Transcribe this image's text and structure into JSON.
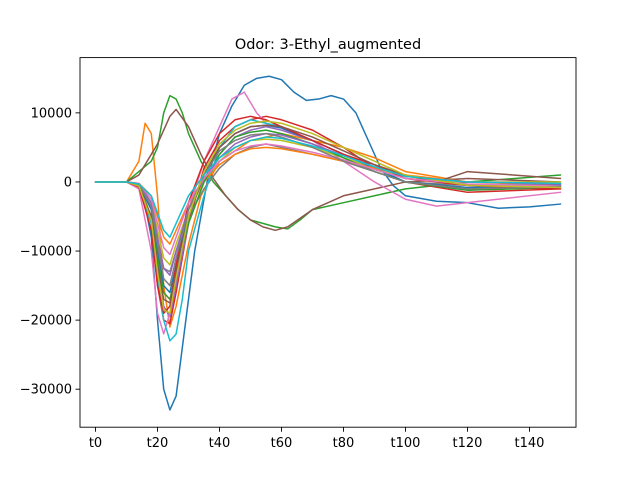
{
  "chart_data": {
    "type": "line",
    "title": "Odor: 3-Ethyl_augmented",
    "xlabel": "",
    "ylabel": "",
    "xlim": [
      -5,
      155
    ],
    "ylim": [
      -35500,
      18000
    ],
    "grid": false,
    "legend": "none",
    "x_ticks": [
      {
        "value": 0,
        "label": "t0"
      },
      {
        "value": 20,
        "label": "t20"
      },
      {
        "value": 40,
        "label": "t40"
      },
      {
        "value": 60,
        "label": "t60"
      },
      {
        "value": 80,
        "label": "t80"
      },
      {
        "value": 100,
        "label": "t100"
      },
      {
        "value": 120,
        "label": "t120"
      },
      {
        "value": 140,
        "label": "t140"
      }
    ],
    "y_ticks": [
      {
        "value": 10000,
        "label": "10000"
      },
      {
        "value": 0,
        "label": "0"
      },
      {
        "value": -10000,
        "label": "−10000"
      },
      {
        "value": -20000,
        "label": "−20000"
      },
      {
        "value": -30000,
        "label": "−30000"
      }
    ],
    "series": [
      {
        "color": "#1f77b4",
        "x": [
          0,
          10,
          15,
          18,
          20,
          22,
          24,
          26,
          28,
          32,
          36,
          40,
          44,
          48,
          52,
          56,
          60,
          64,
          68,
          72,
          76,
          80,
          84,
          88,
          92,
          96,
          100,
          110,
          120,
          130,
          140,
          150
        ],
        "y": [
          0,
          0,
          -1000,
          -8000,
          -20000,
          -30000,
          -33000,
          -31000,
          -24000,
          -10000,
          0,
          7000,
          11000,
          14000,
          15000,
          15300,
          14800,
          13000,
          11800,
          12000,
          12500,
          12000,
          10000,
          6000,
          2000,
          -500,
          -2000,
          -2800,
          -3000,
          -3800,
          -3600,
          -3200
        ]
      },
      {
        "color": "#ff7f0e",
        "x": [
          0,
          10,
          14,
          16,
          18,
          20,
          22,
          24,
          26,
          30,
          34,
          40,
          50,
          60,
          70,
          80,
          90,
          100,
          120,
          150
        ],
        "y": [
          0,
          0,
          3000,
          8500,
          7000,
          -2000,
          -15000,
          -21000,
          -18000,
          -9000,
          -2000,
          3000,
          6000,
          7000,
          6000,
          5000,
          3500,
          1500,
          0,
          -500
        ]
      },
      {
        "color": "#2ca02c",
        "x": [
          0,
          10,
          14,
          18,
          20,
          22,
          24,
          26,
          28,
          30,
          34,
          38,
          42,
          46,
          50,
          54,
          58,
          62,
          66,
          70,
          80,
          90,
          100,
          120,
          150
        ],
        "y": [
          0,
          0,
          1500,
          3000,
          5000,
          10000,
          12500,
          12000,
          10000,
          7000,
          3000,
          0,
          -2000,
          -4000,
          -5500,
          -6000,
          -6500,
          -6800,
          -5500,
          -4000,
          -3000,
          -2000,
          -1000,
          0,
          1000
        ]
      },
      {
        "color": "#d62728",
        "x": [
          0,
          10,
          14,
          18,
          20,
          22,
          24,
          26,
          30,
          35,
          40,
          45,
          50,
          55,
          60,
          70,
          80,
          90,
          100,
          120,
          150
        ],
        "y": [
          0,
          0,
          -500,
          -6000,
          -15000,
          -20000,
          -20500,
          -16000,
          -6000,
          2000,
          6000,
          8000,
          9000,
          9500,
          9000,
          7500,
          5000,
          2000,
          0,
          -1500,
          -1000
        ]
      },
      {
        "color": "#9467bd",
        "x": [
          0,
          10,
          14,
          18,
          20,
          22,
          24,
          26,
          30,
          35,
          40,
          45,
          50,
          55,
          60,
          70,
          80,
          90,
          100,
          120,
          150
        ],
        "y": [
          0,
          0,
          -800,
          -5000,
          -12000,
          -18000,
          -19500,
          -15000,
          -6000,
          0,
          4000,
          6500,
          7500,
          8000,
          7500,
          6000,
          4000,
          2000,
          0,
          -1000,
          -500
        ]
      },
      {
        "color": "#8c564b",
        "x": [
          0,
          10,
          14,
          18,
          20,
          22,
          24,
          26,
          30,
          34,
          38,
          42,
          46,
          50,
          54,
          58,
          62,
          70,
          80,
          90,
          100,
          120,
          150
        ],
        "y": [
          0,
          0,
          1000,
          4000,
          5500,
          7500,
          9500,
          10500,
          8000,
          4000,
          500,
          -2000,
          -4000,
          -5500,
          -6500,
          -7000,
          -6500,
          -4000,
          -2000,
          -1000,
          0,
          500,
          0
        ]
      },
      {
        "color": "#e377c2",
        "x": [
          0,
          10,
          14,
          18,
          20,
          22,
          24,
          26,
          30,
          35,
          40,
          44,
          48,
          52,
          55,
          58,
          60,
          65,
          70,
          80,
          90,
          100,
          110,
          120,
          150
        ],
        "y": [
          0,
          0,
          -1000,
          -10000,
          -19000,
          -22000,
          -19000,
          -13000,
          -4000,
          3000,
          8000,
          12000,
          13000,
          10000,
          8500,
          8000,
          8000,
          7000,
          6000,
          3000,
          0,
          -2500,
          -3500,
          -3000,
          -1500
        ]
      },
      {
        "color": "#7f7f7f",
        "x": [
          0,
          10,
          14,
          18,
          20,
          22,
          24,
          26,
          30,
          35,
          40,
          45,
          50,
          55,
          60,
          70,
          80,
          90,
          100,
          120,
          150
        ],
        "y": [
          0,
          0,
          -500,
          -4000,
          -9000,
          -12500,
          -13000,
          -10000,
          -5000,
          -1000,
          2000,
          4000,
          5000,
          5500,
          5000,
          4000,
          3000,
          1500,
          0,
          -500,
          -300
        ]
      },
      {
        "color": "#bcbd22",
        "x": [
          0,
          10,
          14,
          18,
          20,
          22,
          24,
          26,
          30,
          35,
          40,
          45,
          50,
          55,
          60,
          70,
          80,
          90,
          100,
          120,
          150
        ],
        "y": [
          0,
          0,
          -300,
          -3000,
          -7000,
          -11000,
          -12000,
          -9000,
          -4000,
          0,
          3000,
          5000,
          6000,
          6200,
          6000,
          5000,
          3500,
          2000,
          500,
          0,
          0
        ]
      },
      {
        "color": "#17becf",
        "x": [
          0,
          10,
          14,
          18,
          20,
          22,
          24,
          26,
          28,
          30,
          35,
          40,
          45,
          50,
          55,
          60,
          70,
          80,
          90,
          100,
          120,
          150
        ],
        "y": [
          0,
          0,
          -500,
          -6000,
          -14000,
          -20000,
          -23000,
          -22000,
          -17000,
          -10000,
          -2000,
          5000,
          8000,
          9000,
          8500,
          8000,
          6000,
          4000,
          2000,
          0,
          -1000,
          -800
        ]
      },
      {
        "color": "#1f77b4",
        "x": [
          0,
          10,
          14,
          18,
          20,
          22,
          24,
          26,
          30,
          35,
          40,
          45,
          50,
          55,
          60,
          70,
          80,
          90,
          100,
          120,
          150
        ],
        "y": [
          0,
          0,
          -400,
          -4000,
          -10000,
          -15000,
          -16000,
          -12000,
          -5000,
          1000,
          5000,
          7000,
          8000,
          8200,
          7800,
          6000,
          4000,
          2000,
          0,
          -800,
          -500
        ]
      },
      {
        "color": "#ff7f0e",
        "x": [
          0,
          10,
          14,
          18,
          20,
          22,
          24,
          26,
          30,
          35,
          40,
          45,
          50,
          55,
          60,
          70,
          80,
          90,
          100,
          120,
          150
        ],
        "y": [
          0,
          0,
          -200,
          -2000,
          -5000,
          -8000,
          -9000,
          -7000,
          -3000,
          0,
          2500,
          4000,
          4800,
          5000,
          4800,
          4000,
          3000,
          2000,
          1000,
          0,
          -200
        ]
      },
      {
        "color": "#2ca02c",
        "x": [
          0,
          10,
          14,
          18,
          20,
          22,
          24,
          26,
          30,
          35,
          40,
          45,
          50,
          55,
          60,
          70,
          80,
          90,
          100,
          120,
          150
        ],
        "y": [
          0,
          0,
          -600,
          -5000,
          -11000,
          -16000,
          -17000,
          -13000,
          -6000,
          0,
          4000,
          6500,
          7200,
          7500,
          7000,
          5500,
          3500,
          1500,
          0,
          -1200,
          -800
        ]
      },
      {
        "color": "#d62728",
        "x": [
          0,
          10,
          14,
          18,
          20,
          22,
          24,
          26,
          30,
          35,
          40,
          45,
          50,
          55,
          60,
          70,
          80,
          90,
          100,
          120,
          150
        ],
        "y": [
          0,
          0,
          -700,
          -7000,
          -15000,
          -19000,
          -18000,
          -12000,
          -3000,
          3000,
          7000,
          9000,
          9500,
          9000,
          8000,
          6000,
          4000,
          2500,
          500,
          -500,
          -1000
        ]
      },
      {
        "color": "#9467bd",
        "x": [
          0,
          10,
          14,
          18,
          20,
          22,
          24,
          26,
          30,
          35,
          40,
          45,
          50,
          55,
          60,
          70,
          80,
          90,
          100,
          120,
          150
        ],
        "y": [
          0,
          0,
          -300,
          -3000,
          -8000,
          -12500,
          -13500,
          -10000,
          -4000,
          500,
          3500,
          5500,
          6500,
          7000,
          6800,
          5500,
          3800,
          2200,
          800,
          0,
          -300
        ]
      },
      {
        "color": "#8c564b",
        "x": [
          0,
          10,
          14,
          18,
          20,
          22,
          24,
          26,
          30,
          35,
          40,
          45,
          50,
          55,
          60,
          70,
          80,
          90,
          100,
          110,
          120,
          150
        ],
        "y": [
          0,
          0,
          -500,
          -5000,
          -12000,
          -17000,
          -17500,
          -13000,
          -5000,
          1000,
          5000,
          7000,
          8000,
          8200,
          8000,
          6500,
          4500,
          2500,
          1000,
          0,
          1500,
          500
        ]
      },
      {
        "color": "#e377c2",
        "x": [
          0,
          10,
          14,
          18,
          20,
          22,
          24,
          26,
          30,
          35,
          40,
          45,
          50,
          55,
          60,
          70,
          80,
          90,
          100,
          120,
          150
        ],
        "y": [
          0,
          0,
          -200,
          -2500,
          -6000,
          -9500,
          -10500,
          -8000,
          -3000,
          500,
          3000,
          4500,
          5200,
          5500,
          5200,
          4300,
          3200,
          1800,
          500,
          -300,
          -600
        ]
      },
      {
        "color": "#7f7f7f",
        "x": [
          0,
          10,
          14,
          18,
          20,
          22,
          24,
          26,
          30,
          35,
          40,
          45,
          50,
          55,
          60,
          70,
          80,
          90,
          100,
          120,
          150
        ],
        "y": [
          0,
          0,
          -400,
          -3500,
          -9000,
          -14000,
          -15000,
          -11000,
          -4000,
          1000,
          4500,
          6000,
          6800,
          7000,
          6500,
          5000,
          3000,
          1500,
          0,
          -1000,
          -700
        ]
      },
      {
        "color": "#bcbd22",
        "x": [
          0,
          10,
          14,
          18,
          20,
          22,
          24,
          26,
          30,
          35,
          40,
          45,
          50,
          55,
          60,
          70,
          80,
          90,
          100,
          120,
          150
        ],
        "y": [
          0,
          0,
          -600,
          -5500,
          -13000,
          -18500,
          -19000,
          -14000,
          -5000,
          1500,
          5500,
          7500,
          8500,
          8800,
          8500,
          7000,
          5000,
          3000,
          1000,
          -500,
          -800
        ]
      },
      {
        "color": "#17becf",
        "x": [
          0,
          10,
          14,
          18,
          20,
          22,
          24,
          26,
          30,
          35,
          40,
          45,
          50,
          55,
          60,
          70,
          80,
          90,
          100,
          120,
          150
        ],
        "y": [
          0,
          0,
          -300,
          -2000,
          -4500,
          -7000,
          -8000,
          -6000,
          -2000,
          1000,
          3500,
          5000,
          6000,
          6500,
          6300,
          5200,
          3800,
          2200,
          800,
          0,
          -200
        ]
      }
    ]
  }
}
